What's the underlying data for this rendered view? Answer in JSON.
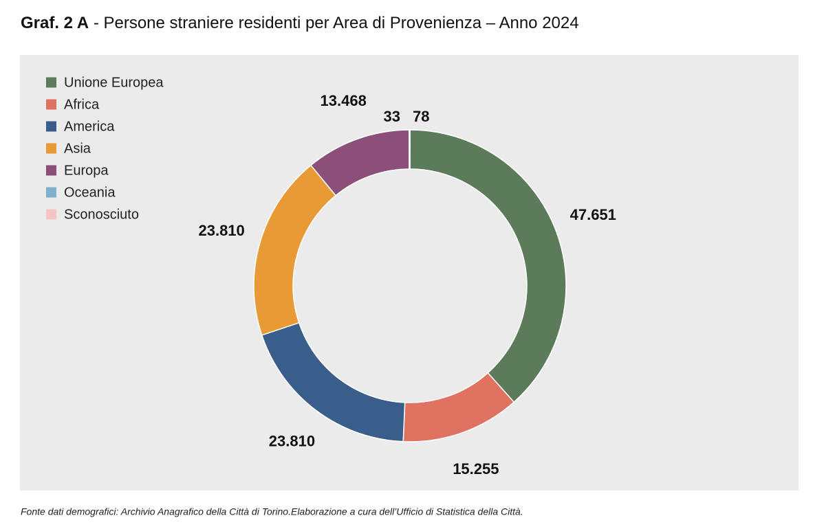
{
  "chart_data": {
    "type": "donut",
    "title_bold": "Graf. 2 A",
    "title": "- Persone straniere residenti per Area di Provenienza – Anno 2024",
    "categories": [
      "Unione Europea",
      "Africa",
      "America",
      "Asia",
      "Europa",
      "Oceania",
      "Sconosciuto"
    ],
    "values": [
      47651,
      15255,
      23810,
      23810,
      13468,
      33,
      78
    ],
    "value_labels": [
      "47.651",
      "15.255",
      "23.810",
      "23.810",
      "13.468",
      "33",
      "78"
    ],
    "colors": [
      "#5b7b5a",
      "#e07262",
      "#3a5e8c",
      "#e89a36",
      "#8c4f7a",
      "#7fb0cc",
      "#f4c6c4"
    ],
    "legend": "top-left",
    "source": "Fonte dati demografici: Archivio Anagrafico della Città di Torino.Elaborazione a cura dell’Ufficio di Statistica della Città."
  }
}
